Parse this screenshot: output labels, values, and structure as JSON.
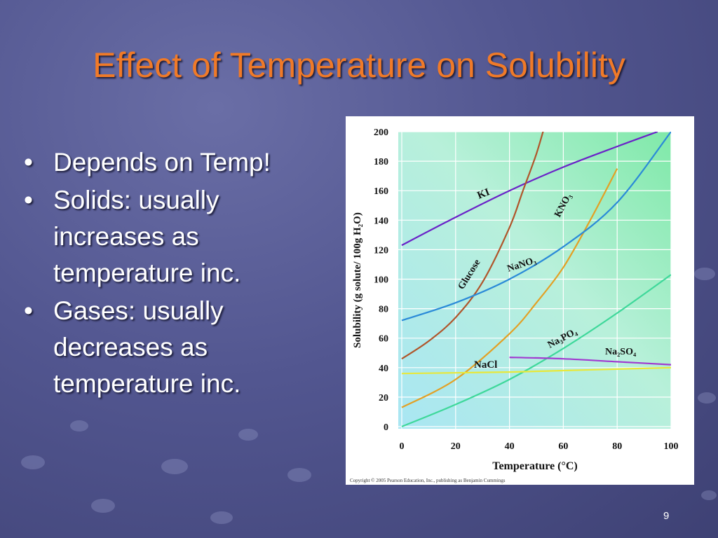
{
  "slide": {
    "title": "Effect of Temperature on Solubility",
    "bullets": [
      "Depends on Temp!",
      "Solids: usually increases as temperature inc.",
      "Gases: usually decreases as temperature inc."
    ],
    "page_number": "9"
  },
  "colors": {
    "title": "#f07a28",
    "text": "#ffffff",
    "background": "#525690"
  },
  "chart_data": {
    "type": "line",
    "title": "",
    "xlabel": "Temperature (°C)",
    "ylabel": "Solubility (g solute/ 100g H₂O)",
    "xlim": [
      0,
      100
    ],
    "ylim": [
      0,
      200
    ],
    "xticks": [
      "0",
      "20",
      "40",
      "60",
      "80",
      "100"
    ],
    "yticks": [
      "0",
      "20",
      "40",
      "60",
      "80",
      "100",
      "120",
      "140",
      "160",
      "180",
      "200"
    ],
    "grid": true,
    "copyright": "Copyright © 2005 Pearson Education, Inc., publishing as Benjamin Cummings",
    "series": [
      {
        "name": "KI",
        "color": "#6a22c8",
        "x": [
          0,
          20,
          40,
          60,
          80,
          95
        ],
        "y": [
          123,
          142,
          160,
          176,
          190,
          200
        ]
      },
      {
        "name": "Glucose",
        "color": "#b0552a",
        "x": [
          0,
          10,
          20,
          30,
          40,
          45,
          50,
          54
        ],
        "y": [
          46,
          58,
          74,
          98,
          135,
          160,
          185,
          210
        ]
      },
      {
        "name": "KNO₃",
        "color": "#e3a024",
        "x": [
          0,
          20,
          40,
          50,
          60,
          70,
          80
        ],
        "y": [
          13,
          32,
          63,
          84,
          108,
          140,
          175
        ]
      },
      {
        "name": "NaNO₃",
        "color": "#2a8ad8",
        "x": [
          0,
          20,
          40,
          60,
          80,
          100
        ],
        "y": [
          72,
          84,
          100,
          122,
          152,
          200
        ]
      },
      {
        "name": "Na₃PO₄",
        "color": "#3ed89a",
        "x": [
          0,
          20,
          40,
          60,
          80,
          100
        ],
        "y": [
          0,
          15,
          32,
          53,
          77,
          103
        ]
      },
      {
        "name": "Na₂SO₄",
        "color": "#a13ad0",
        "x": [
          40,
          60,
          80,
          100
        ],
        "y": [
          47,
          46,
          44,
          42
        ]
      },
      {
        "name": "NaCl",
        "color": "#e8e83a",
        "x": [
          0,
          20,
          40,
          60,
          80,
          100
        ],
        "y": [
          36,
          36.5,
          37,
          38,
          39,
          40
        ]
      }
    ]
  }
}
